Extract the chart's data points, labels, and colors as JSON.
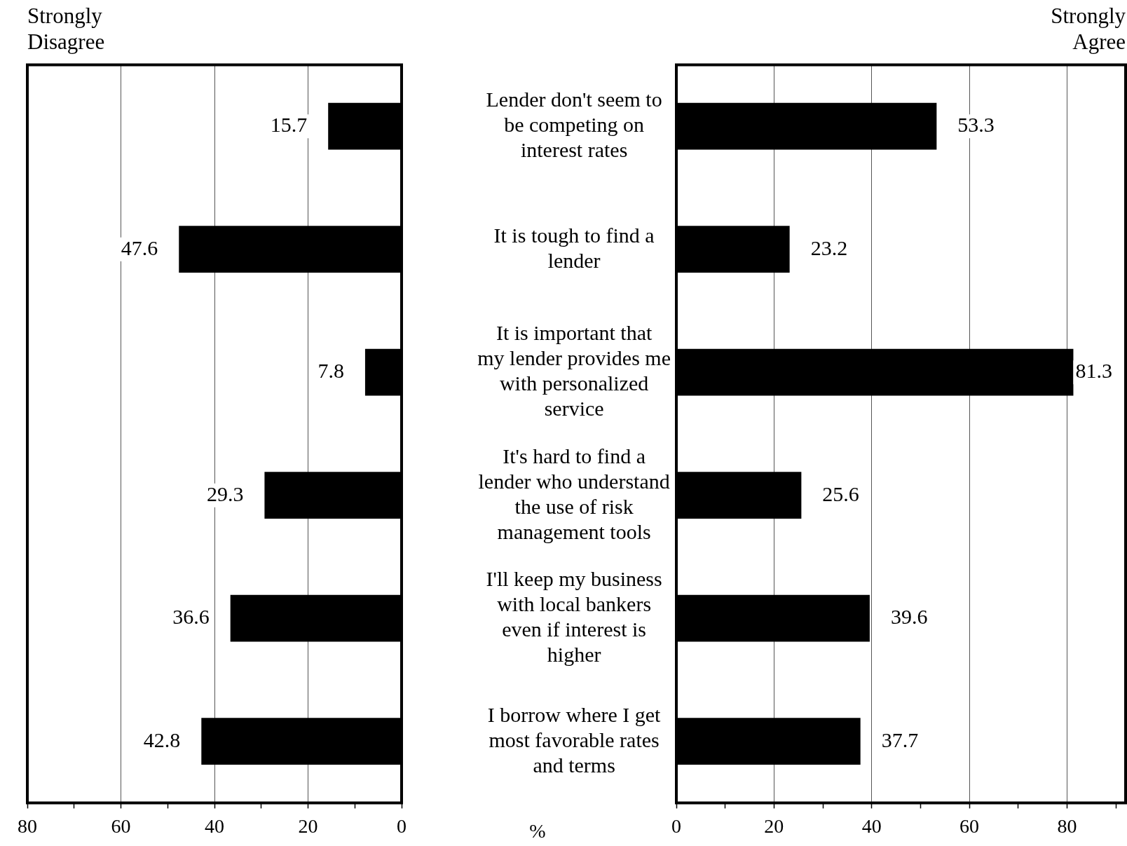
{
  "chart_data": [
    {
      "type": "bar",
      "orientation": "horizontal",
      "title": "Strongly Disagree",
      "categories": [
        null,
        null,
        null,
        null,
        null,
        null
      ],
      "values": [
        15.7,
        47.6,
        7.8,
        29.3,
        36.6,
        42.8
      ],
      "color": "#000000",
      "data_labels": true,
      "xlim": [
        80,
        0
      ],
      "xticks": [
        80,
        {
          "value": 70,
          "label": null
        },
        60,
        {
          "value": 50,
          "label": null
        },
        40,
        {
          "value": 30,
          "label": null
        },
        20,
        {
          "value": 10,
          "label": null
        },
        0
      ],
      "grid": "x",
      "legend": false,
      "tick_labels": "x"
    },
    {
      "type": "bar",
      "orientation": "horizontal",
      "title": "Strongly Agree",
      "xlabel": "%",
      "categories": [
        "Lender don't seem to be competing on interest rates",
        "It is tough to find a lender",
        "It is important that my lender provides me with personalized service",
        "It's hard to find a lender who understand the use of risk management tools",
        "I'll keep my business with local bankers even if interest is higher",
        "I borrow where I get most favorable rates and terms"
      ],
      "values": [
        53.3,
        23.2,
        81.3,
        25.6,
        39.6,
        37.7
      ],
      "color": "#000000",
      "data_labels": true,
      "xlim": [
        0,
        92
      ],
      "xticks": [
        0,
        {
          "value": 10,
          "label": null
        },
        20,
        {
          "value": 30,
          "label": null
        },
        40,
        {
          "value": 50,
          "label": null
        },
        60,
        {
          "value": 70,
          "label": null
        },
        80,
        {
          "value": 90,
          "label": null
        }
      ],
      "grid": "x",
      "legend": false
    }
  ]
}
